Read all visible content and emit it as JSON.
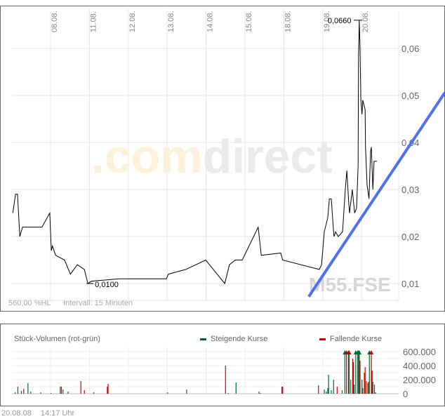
{
  "chart_data": [
    {
      "type": "line",
      "x_ticks": [
        "08.08.",
        "11.08.",
        "12.08.",
        "13.08.",
        "14.08.",
        "15.08.",
        "18.08.",
        "19.08.",
        "20.08."
      ],
      "y_ticks": [
        "0,06",
        "0,05",
        "0,04",
        "0,03",
        "0,02",
        "0,01"
      ],
      "y_tick_values": [
        0.06,
        0.05,
        0.04,
        0.03,
        0.02,
        0.01
      ],
      "ylim": [
        0.007,
        0.066
      ],
      "grid": true,
      "series": [
        {
          "color": "#000000",
          "x": [
            -0.97,
            -0.9,
            -0.85,
            -0.79,
            -0.72,
            -0.22,
            -0.02,
            0.02,
            0.05,
            0.13,
            0.36,
            0.51,
            0.69,
            0.87,
            0.96,
            1.05,
            1.77,
            2.98,
            3.03,
            3.48,
            3.99,
            4.48,
            4.6,
            4.75,
            4.93,
            5.34,
            5.42,
            5.92,
            5.97,
            6.91,
            6.97,
            7.04,
            7.13,
            7.17,
            7.22,
            7.27,
            7.29,
            7.33,
            7.4,
            7.51,
            7.58,
            7.62,
            7.67,
            7.69,
            7.76,
            7.82,
            7.87,
            7.91,
            7.92,
            7.94,
            7.96,
            7.98,
            8.01,
            8.03,
            8.09,
            8.1,
            8.14,
            8.19,
            8.23,
            8.25,
            8.29,
            8.32,
            8.39
          ],
          "y": [
            0.025,
            0.029,
            0.029,
            0.02,
            0.022,
            0.022,
            0.025,
            0.017,
            0.018,
            0.016,
            0.015,
            0.012,
            0.014,
            0.013,
            0.01,
            0.0105,
            0.011,
            0.011,
            0.012,
            0.013,
            0.015,
            0.01,
            0.014,
            0.015,
            0.015,
            0.022,
            0.016,
            0.0165,
            0.015,
            0.013,
            0.014,
            0.021,
            0.024,
            0.028,
            0.028,
            0.022,
            0.02,
            0.021,
            0.02,
            0.021,
            0.03,
            0.034,
            0.027,
            0.025,
            0.03,
            0.025,
            0.026,
            0.035,
            0.058,
            0.066,
            0.06,
            0.049,
            0.046,
            0.049,
            0.047,
            0.039,
            0.031,
            0.028,
            0.038,
            0.039,
            0.03,
            0.036,
            0.036
          ]
        }
      ],
      "trendline": {
        "color": "#5470e8",
        "x": [
          6.64,
          10.14
        ],
        "y": [
          0.0072,
          0.0506
        ]
      },
      "annotations": {
        "max_label": "0,0660",
        "max_x": 7.94,
        "max_y": 0.066,
        "min_label": "0,0100",
        "min_x": 0.96,
        "min_y": 0.01
      },
      "info_range": "560,00 %HL",
      "info_interval": "Intervall: 15 Minuten",
      "watermark_com": ".com",
      "watermark_direct": "direct",
      "symbol": "M55.FSE"
    },
    {
      "type": "bar",
      "title": "Stück-Volumen (rot-grün)",
      "legend": [
        {
          "name": "Steigende Kurse",
          "color": "#006633"
        },
        {
          "name": "Fallende Kurse",
          "color": "#cc0000"
        }
      ],
      "legend_placement": "top",
      "y_ticks": [
        "600.000",
        "400.000",
        "200.000",
        "0"
      ],
      "y_tick_values": [
        600000,
        400000,
        200000,
        0
      ],
      "ylim": [
        0,
        600000
      ],
      "bars": [
        [
          -0.91,
          "g",
          20000
        ],
        [
          -0.84,
          "g",
          100000
        ],
        [
          -0.75,
          "g",
          40000
        ],
        [
          -0.69,
          "r",
          70000
        ],
        [
          -0.58,
          "g",
          150000
        ],
        [
          -0.51,
          "g",
          30000
        ],
        [
          -0.25,
          "g",
          20000
        ],
        [
          0.01,
          "g",
          10000
        ],
        [
          0.25,
          "r",
          100000
        ],
        [
          0.28,
          "g",
          100000
        ],
        [
          0.32,
          "g",
          60000
        ],
        [
          0.45,
          "r",
          30000
        ],
        [
          0.78,
          "r",
          180000
        ],
        [
          0.87,
          "r",
          50000
        ],
        [
          1.11,
          "g",
          20000
        ],
        [
          1.46,
          "r",
          100000
        ],
        [
          1.48,
          "r",
          140000
        ],
        [
          3.01,
          "g",
          20000
        ],
        [
          3.5,
          "g",
          60000
        ],
        [
          4.5,
          "r",
          400000
        ],
        [
          4.57,
          "g",
          10000
        ],
        [
          4.77,
          "g",
          160000
        ],
        [
          5.36,
          "g",
          30000
        ],
        [
          5.4,
          "r",
          10000
        ],
        [
          5.95,
          "g",
          100000
        ],
        [
          5.97,
          "r",
          100000
        ],
        [
          6.89,
          "r",
          120000
        ],
        [
          7.04,
          "g",
          60000
        ],
        [
          7.09,
          "g",
          30000
        ],
        [
          7.13,
          "g",
          80000
        ],
        [
          7.15,
          "g",
          270000
        ],
        [
          7.22,
          "g",
          50000
        ],
        [
          7.28,
          "g",
          200000
        ],
        [
          7.37,
          "r",
          100000
        ],
        [
          7.5,
          "g",
          50000
        ],
        [
          7.57,
          "g",
          650000
        ],
        [
          7.61,
          "r",
          650000
        ],
        [
          7.66,
          "g",
          650000
        ],
        [
          7.68,
          "r",
          650000
        ],
        [
          7.72,
          "g",
          200000
        ],
        [
          7.77,
          "r",
          500000
        ],
        [
          7.79,
          "r",
          450000
        ],
        [
          7.81,
          "g",
          130000
        ],
        [
          7.85,
          "g",
          650000
        ],
        [
          7.9,
          "g",
          650000
        ],
        [
          7.92,
          "g",
          650000
        ],
        [
          7.94,
          "g",
          650000
        ],
        [
          7.96,
          "r",
          470000
        ],
        [
          8.01,
          "g",
          200000
        ],
        [
          8.03,
          "g",
          80000
        ],
        [
          8.07,
          "r",
          300000
        ],
        [
          8.09,
          "r",
          380000
        ],
        [
          8.12,
          "r",
          180000
        ],
        [
          8.16,
          "g",
          150000
        ],
        [
          8.18,
          "r",
          170000
        ],
        [
          8.2,
          "g",
          650000
        ],
        [
          8.25,
          "r",
          650000
        ],
        [
          8.27,
          "r",
          330000
        ],
        [
          8.29,
          "g",
          170000
        ],
        [
          8.33,
          "g",
          130000
        ],
        [
          8.36,
          "g",
          20000
        ]
      ]
    }
  ],
  "footer": {
    "date": "20.08.08",
    "time": "14:17 Uhr"
  }
}
